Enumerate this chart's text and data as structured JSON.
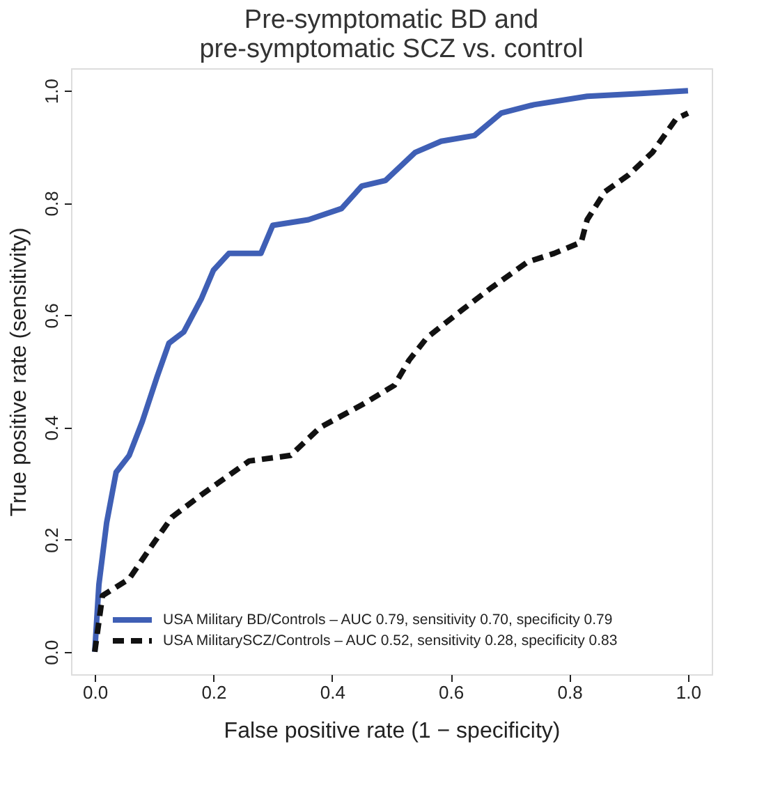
{
  "chart_data": {
    "type": "line",
    "title": [
      "Pre-symptomatic BD and",
      "pre-symptomatic SCZ vs. control"
    ],
    "xlabel": "False positive rate (1 −  specificity)",
    "ylabel": "True positive rate (sensitivity)",
    "xlim": [
      -0.04,
      1.04
    ],
    "ylim": [
      -0.04,
      1.04
    ],
    "xticks": [
      {
        "value": 0,
        "label": "0.0"
      },
      0.2,
      0.4,
      0.6,
      0.8,
      {
        "value": 1,
        "label": "1.0"
      }
    ],
    "yticks": [
      {
        "value": 0,
        "label": "0.0"
      },
      0.2,
      0.4,
      0.6,
      0.8,
      {
        "value": 1,
        "label": "1.0"
      }
    ],
    "grid": false,
    "legend": "bottom right",
    "marker": "none",
    "series": [
      {
        "name": "USA Military BD/Controls – AUC 0.79, sensitivity 0.70, specificity 0.79",
        "color": "#3f5fb5",
        "line_style": "solid",
        "x": [
          0,
          0.007,
          0.02,
          0.036,
          0.058,
          0.08,
          0.105,
          0.125,
          0.15,
          0.18,
          0.2,
          0.226,
          0.28,
          0.3,
          0.36,
          0.416,
          0.45,
          0.49,
          0.54,
          0.584,
          0.64,
          0.685,
          0.74,
          0.83,
          0.92,
          1
        ],
        "values": [
          0,
          0.12,
          0.23,
          0.32,
          0.35,
          0.41,
          0.49,
          0.55,
          0.57,
          0.63,
          0.68,
          0.71,
          0.71,
          0.76,
          0.77,
          0.79,
          0.83,
          0.84,
          0.89,
          0.91,
          0.92,
          0.96,
          0.975,
          0.99,
          0.995,
          1
        ]
      },
      {
        "name": "USA MilitarySCZ/Controls – AUC 0.52, sensitivity 0.28, specificity 0.83",
        "color": "#111111",
        "line_style": "dashed",
        "x": [
          0,
          0.013,
          0.058,
          0.1,
          0.13,
          0.18,
          0.26,
          0.33,
          0.38,
          0.45,
          0.505,
          0.53,
          0.56,
          0.62,
          0.67,
          0.73,
          0.774,
          0.82,
          0.83,
          0.86,
          0.9,
          0.94,
          0.98,
          1
        ],
        "values": [
          0,
          0.1,
          0.13,
          0.195,
          0.24,
          0.28,
          0.34,
          0.35,
          0.4,
          0.44,
          0.475,
          0.52,
          0.56,
          0.61,
          0.65,
          0.695,
          0.71,
          0.73,
          0.77,
          0.82,
          0.85,
          0.89,
          0.95,
          0.96
        ]
      }
    ]
  }
}
